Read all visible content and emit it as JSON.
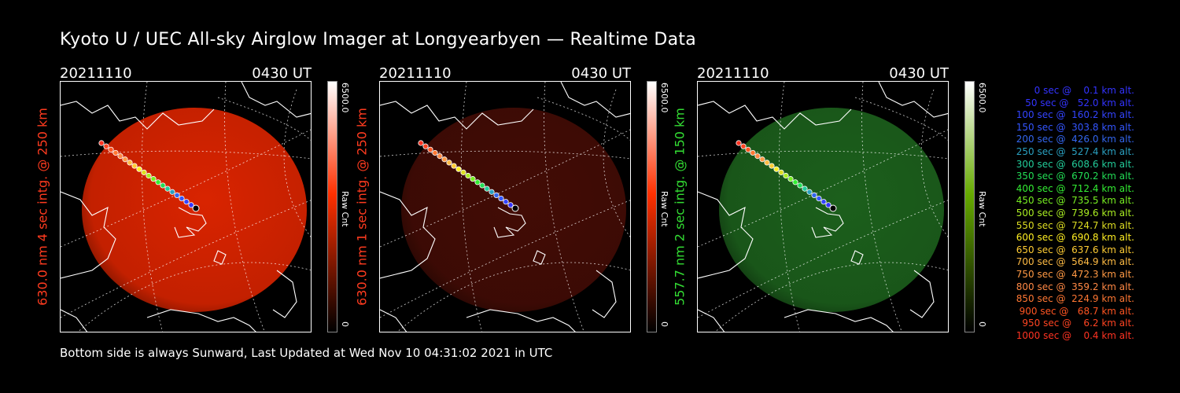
{
  "title": "Kyoto U / UEC All-sky Airglow Imager at Longyearbyen — Realtime Data",
  "footer": "Bottom side is always Sunward, Last Updated at Wed Nov 10 04:31:02 2021 in UTC",
  "panels": [
    {
      "date": "20211110",
      "time": "0430 UT",
      "side_label": "630.0 nm 4 sec intg. @ 250 km",
      "label_color": "#ff3b1f",
      "cbar_max": "6500.0",
      "cbar_unit": "Raw Cnt",
      "cbar_min": "0",
      "cbar_color": "#ff3000",
      "glow": "#ff2a00",
      "glow_opacity": 0.85
    },
    {
      "date": "20211110",
      "time": "0430 UT",
      "side_label": "630.0 nm 1 sec intg. @ 250 km",
      "label_color": "#ff3b1f",
      "cbar_max": "6500.0",
      "cbar_unit": "Raw Cnt",
      "cbar_min": "0",
      "cbar_color": "#ff3000",
      "glow": "#4a0d06",
      "glow_opacity": 0.9
    },
    {
      "date": "20211110",
      "time": "0430 UT",
      "side_label": "557.7 nm 2 sec intg. @ 150 km",
      "label_color": "#33dd33",
      "cbar_max": "6500.0",
      "cbar_unit": "Raw Cnt",
      "cbar_min": "0",
      "cbar_color": "#66aa00",
      "glow": "#1f6a1f",
      "glow_opacity": 0.9
    }
  ],
  "legend": [
    {
      "text": "   0 sec @    0.1 km alt.",
      "color": "#3333ff"
    },
    {
      "text": "  50 sec @   52.0 km alt.",
      "color": "#3333ff"
    },
    {
      "text": " 100 sec @  160.2 km alt.",
      "color": "#3344ff"
    },
    {
      "text": " 150 sec @  303.8 km alt.",
      "color": "#3355ff"
    },
    {
      "text": " 200 sec @  426.0 km alt.",
      "color": "#3366ee"
    },
    {
      "text": " 250 sec @  527.4 km alt.",
      "color": "#2aa0c0"
    },
    {
      "text": " 300 sec @  608.6 km alt.",
      "color": "#22cc99"
    },
    {
      "text": " 350 sec @  670.2 km alt.",
      "color": "#22dd55"
    },
    {
      "text": " 400 sec @  712.4 km alt.",
      "color": "#33ee33"
    },
    {
      "text": " 450 sec @  735.5 km alt.",
      "color": "#77ee22"
    },
    {
      "text": " 500 sec @  739.6 km alt.",
      "color": "#aaee22"
    },
    {
      "text": " 550 sec @  724.7 km alt.",
      "color": "#dddd22"
    },
    {
      "text": " 600 sec @  690.8 km alt.",
      "color": "#ffee22"
    },
    {
      "text": " 650 sec @  637.6 km alt.",
      "color": "#ffcc33"
    },
    {
      "text": " 700 sec @  564.9 km alt.",
      "color": "#ffbb44"
    },
    {
      "text": " 750 sec @  472.3 km alt.",
      "color": "#ff9944"
    },
    {
      "text": " 800 sec @  359.2 km alt.",
      "color": "#ff8844"
    },
    {
      "text": " 850 sec @  224.9 km alt.",
      "color": "#ff7733"
    },
    {
      "text": " 900 sec @   68.7 km alt.",
      "color": "#ff5522"
    },
    {
      "text": " 950 sec @    6.2 km alt.",
      "color": "#ff4422"
    },
    {
      "text": "1000 sec @    0.4 km alt.",
      "color": "#ff3322"
    }
  ]
}
